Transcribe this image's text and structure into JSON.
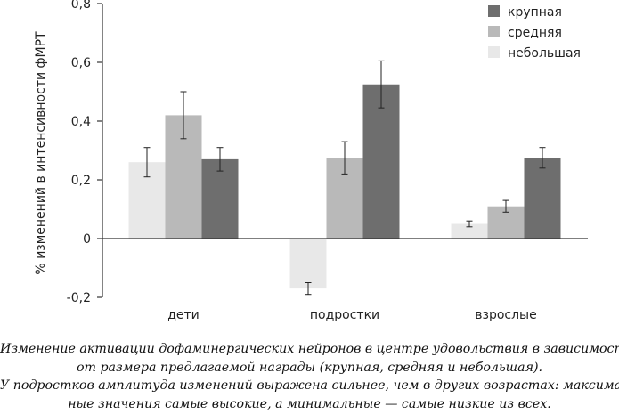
{
  "chart_data": {
    "type": "bar",
    "title": "",
    "xlabel": "",
    "ylabel": "% изменений в интенсивности фМРТ",
    "ylim": [
      -0.2,
      0.8
    ],
    "yticks": [
      -0.2,
      0,
      0.2,
      0.4,
      0.6,
      0.8
    ],
    "ytick_labels": [
      "-0,2",
      "0",
      "0,2",
      "0,4",
      "0,6",
      "0,8"
    ],
    "categories": [
      "дети",
      "подростки",
      "взрослые"
    ],
    "legend_position": "top-right",
    "series": [
      {
        "name": "небольшая",
        "color": "#e8e8e8",
        "values": [
          0.26,
          -0.17,
          0.05
        ],
        "errors": [
          0.05,
          0.02,
          0.01
        ]
      },
      {
        "name": "средняя",
        "color": "#b9b9b9",
        "values": [
          0.42,
          0.275,
          0.11
        ],
        "errors": [
          0.08,
          0.055,
          0.02
        ]
      },
      {
        "name": "крупная",
        "color": "#6e6e6e",
        "values": [
          0.27,
          0.525,
          0.275
        ],
        "errors": [
          0.04,
          0.08,
          0.035
        ]
      }
    ],
    "legend_order": [
      "крупная",
      "средняя",
      "небольшая"
    ]
  },
  "caption": {
    "lines": [
      "Изменение активации дофаминергических нейронов в центре удовольствия в зависимости",
      "от размера предлагаемой награды (крупная, средняя и небольшая).",
      "У подростков амплитуда изменений выражена сильнее, чем в других возрастах: максималь-",
      "ные значения самые высокие, а минимальные — самые низкие из всех."
    ]
  }
}
